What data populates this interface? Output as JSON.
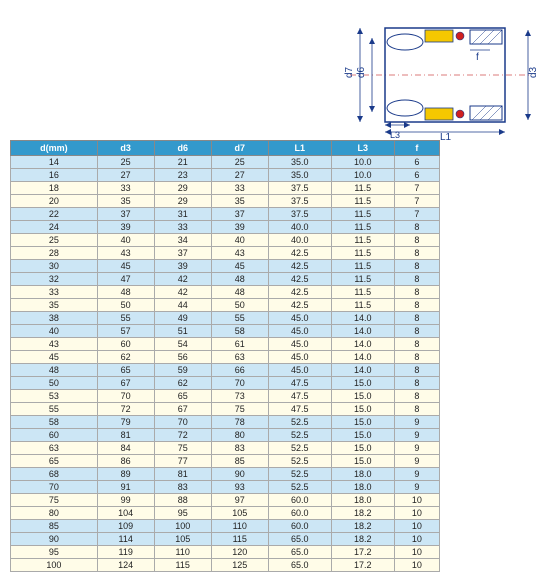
{
  "diagram": {
    "labels": {
      "d7": "d7",
      "d6": "d6",
      "d3": "d3",
      "L3": "L3",
      "L1": "L1",
      "f": "f"
    },
    "colors": {
      "outline": "#1a3a8a",
      "hatch": "#1a3a8a",
      "yellow": "#f5c800",
      "red": "#d02020",
      "centerline": "#d05050",
      "bg": "#ffffff"
    }
  },
  "table": {
    "columns": [
      "d(mm)",
      "d3",
      "d6",
      "d7",
      "L1",
      "L3",
      "f"
    ],
    "header_bg": "#3399cc",
    "header_fg": "#ffffff",
    "band_colors": {
      "blue": "#cce6f5",
      "cream": "#fffce8"
    },
    "rows": [
      [
        14,
        25,
        21,
        25,
        "35.0",
        "10.0",
        6
      ],
      [
        16,
        27,
        23,
        27,
        "35.0",
        "10.0",
        6
      ],
      [
        18,
        33,
        29,
        33,
        "37.5",
        "11.5",
        7
      ],
      [
        20,
        35,
        29,
        35,
        "37.5",
        "11.5",
        7
      ],
      [
        22,
        37,
        31,
        37,
        "37.5",
        "11.5",
        7
      ],
      [
        24,
        39,
        33,
        39,
        "40.0",
        "11.5",
        8
      ],
      [
        25,
        40,
        34,
        40,
        "40.0",
        "11.5",
        8
      ],
      [
        28,
        43,
        37,
        43,
        "42.5",
        "11.5",
        8
      ],
      [
        30,
        45,
        39,
        45,
        "42.5",
        "11.5",
        8
      ],
      [
        32,
        47,
        42,
        48,
        "42.5",
        "11.5",
        8
      ],
      [
        33,
        48,
        42,
        48,
        "42.5",
        "11.5",
        8
      ],
      [
        35,
        50,
        44,
        50,
        "42.5",
        "11.5",
        8
      ],
      [
        38,
        55,
        49,
        55,
        "45.0",
        "14.0",
        8
      ],
      [
        40,
        57,
        51,
        58,
        "45.0",
        "14.0",
        8
      ],
      [
        43,
        60,
        54,
        61,
        "45.0",
        "14.0",
        8
      ],
      [
        45,
        62,
        56,
        63,
        "45.0",
        "14.0",
        8
      ],
      [
        48,
        65,
        59,
        66,
        "45.0",
        "14.0",
        8
      ],
      [
        50,
        67,
        62,
        70,
        "47.5",
        "15.0",
        8
      ],
      [
        53,
        70,
        65,
        73,
        "47.5",
        "15.0",
        8
      ],
      [
        55,
        72,
        67,
        75,
        "47.5",
        "15.0",
        8
      ],
      [
        58,
        79,
        70,
        78,
        "52.5",
        "15.0",
        9
      ],
      [
        60,
        81,
        72,
        80,
        "52.5",
        "15.0",
        9
      ],
      [
        63,
        84,
        75,
        83,
        "52.5",
        "15.0",
        9
      ],
      [
        65,
        86,
        77,
        85,
        "52.5",
        "15.0",
        9
      ],
      [
        68,
        89,
        81,
        90,
        "52.5",
        "18.0",
        9
      ],
      [
        70,
        91,
        83,
        93,
        "52.5",
        "18.0",
        9
      ],
      [
        75,
        99,
        88,
        97,
        "60.0",
        "18.0",
        10
      ],
      [
        80,
        104,
        95,
        105,
        "60.0",
        "18.2",
        10
      ],
      [
        85,
        109,
        100,
        110,
        "60.0",
        "18.2",
        10
      ],
      [
        90,
        114,
        105,
        115,
        "65.0",
        "18.2",
        10
      ],
      [
        95,
        119,
        110,
        120,
        "65.0",
        "17.2",
        10
      ],
      [
        100,
        124,
        115,
        125,
        "65.0",
        "17.2",
        10
      ]
    ]
  }
}
